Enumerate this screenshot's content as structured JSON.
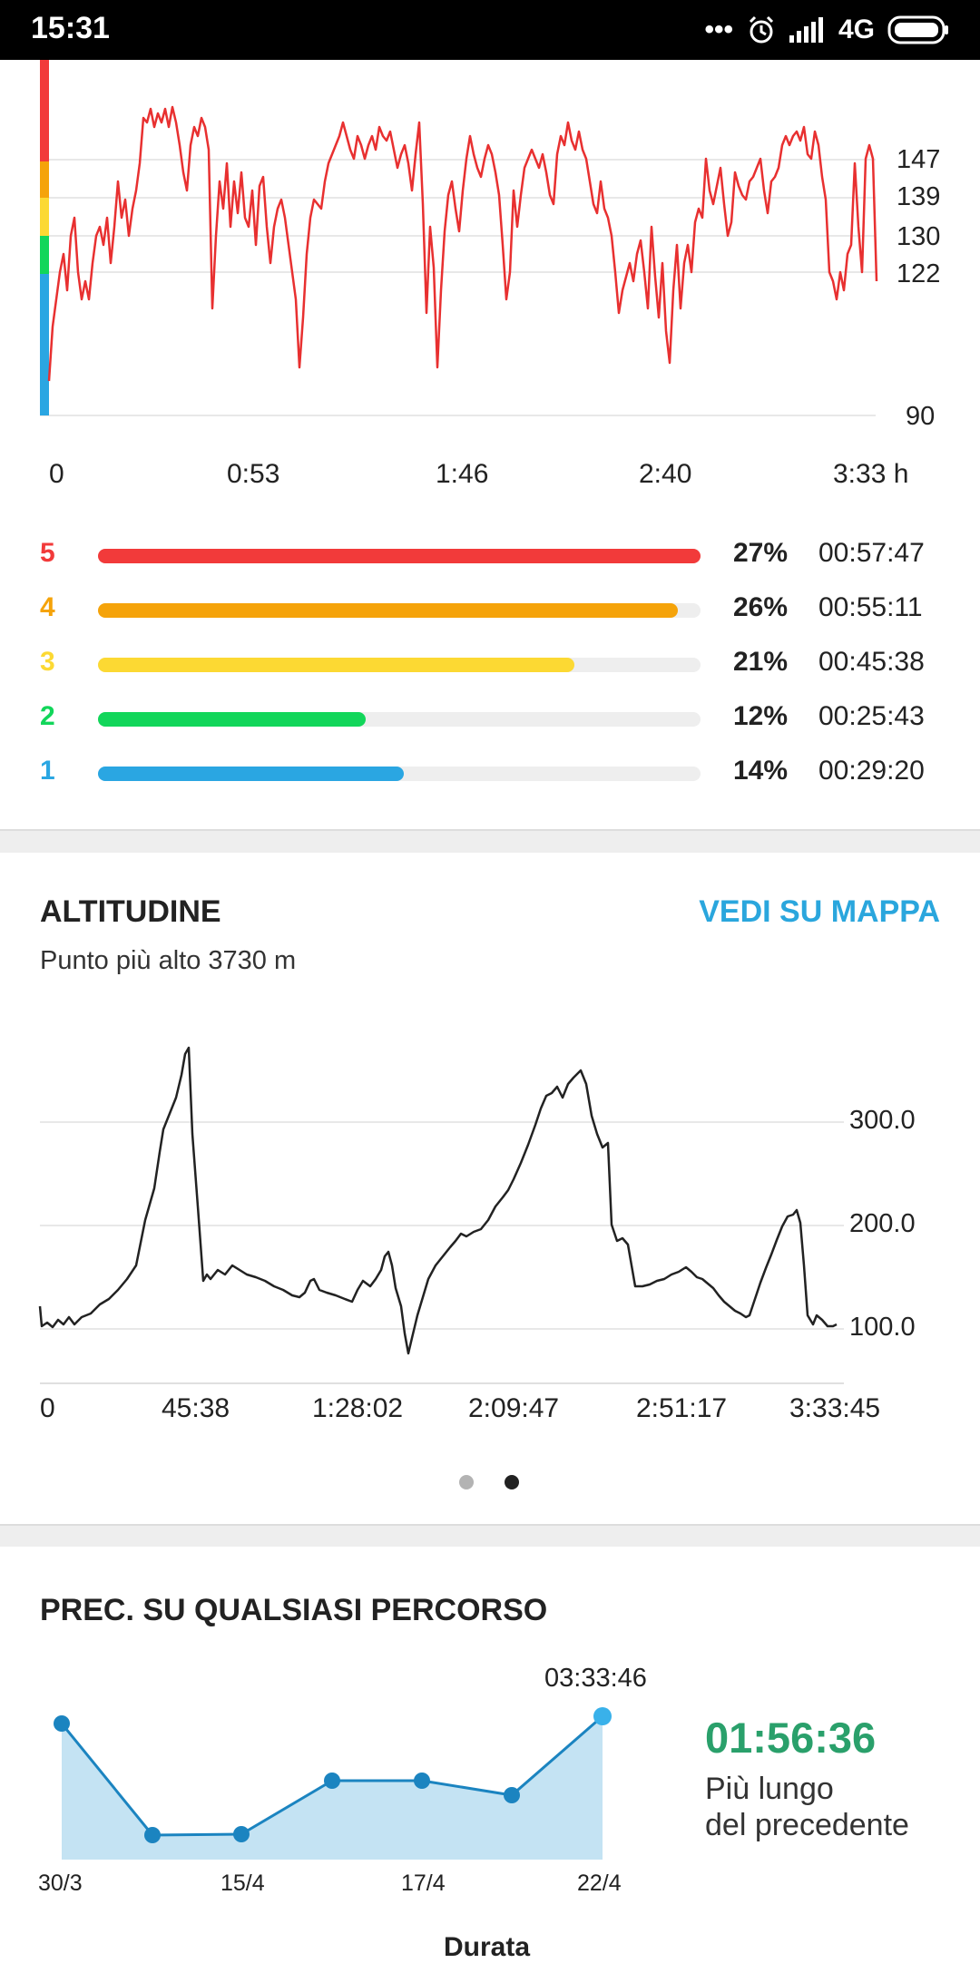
{
  "status_bar": {
    "time": "15:31",
    "network": "4G",
    "signal_suffix": ".ıl",
    "icons": [
      "more-dots-icon",
      "alarm-icon",
      "signal-icon",
      "battery-icon"
    ]
  },
  "heart_rate_chart": {
    "y_labels": [
      "147",
      "139",
      "130",
      "122",
      "90"
    ],
    "x_labels": [
      "0",
      "0:53",
      "1:46",
      "2:40",
      "3:33 h"
    ]
  },
  "zones": [
    {
      "num": "5",
      "pct": "27%",
      "time": "00:57:47",
      "color": "#f23a3a",
      "fill": 1.0
    },
    {
      "num": "4",
      "pct": "26%",
      "time": "00:55:11",
      "color": "#f5a30a",
      "fill": 0.963
    },
    {
      "num": "3",
      "pct": "21%",
      "time": "00:45:38",
      "color": "#fcd933",
      "fill": 0.79
    },
    {
      "num": "2",
      "pct": "12%",
      "time": "00:25:43",
      "color": "#12d65a",
      "fill": 0.445
    },
    {
      "num": "1",
      "pct": "14%",
      "time": "00:29:20",
      "color": "#2aa6e2",
      "fill": 0.508
    }
  ],
  "altitude": {
    "title": "ALTITUDINE",
    "map_link": "VEDI SU MAPPA",
    "subtitle": "Punto più alto 3730 m",
    "y_labels": [
      "300.0",
      "200.0",
      "100.0"
    ],
    "x_labels": [
      "0",
      "45:38",
      "1:28:02",
      "2:09:47",
      "2:51:17",
      "3:33:45"
    ]
  },
  "pager": {
    "count": 2,
    "active": 1
  },
  "comparison": {
    "title": "PREC. SU QUALSIASI PERCORSO",
    "top_value": "03:33:46",
    "dates": [
      "30/3",
      "15/4",
      "17/4",
      "22/4"
    ],
    "big_value": "01:56:36",
    "caption_line1": "Più lungo",
    "caption_line2": "del precedente",
    "footer_label": "Durata"
  },
  "colors": {
    "hr_line": "#e83030",
    "accent_blue": "#2aa6dd",
    "green": "#2aa06b"
  }
}
